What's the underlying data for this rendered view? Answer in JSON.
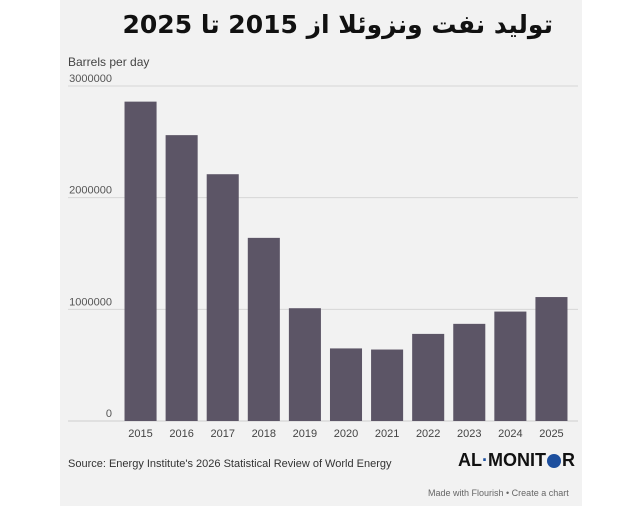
{
  "title": "تولید نفت ونزوئلا از 2015 تا 2025",
  "chart_data": {
    "type": "bar",
    "ylabel": "Barrels per day",
    "categories": [
      "2015",
      "2016",
      "2017",
      "2018",
      "2019",
      "2020",
      "2021",
      "2022",
      "2023",
      "2024",
      "2025"
    ],
    "values": [
      2860000,
      2560000,
      2210000,
      1640000,
      1010000,
      650000,
      640000,
      780000,
      870000,
      980000,
      1110000
    ],
    "ylim": [
      0,
      3000000
    ],
    "yticks": [
      "0",
      "1000000",
      "2000000",
      "3000000"
    ],
    "grid": true,
    "bar_color": "#5c5566"
  },
  "source": "Source: Energy Institute's 2026 Statistical Review of World Energy",
  "logo": {
    "part1": "AL",
    "part2": "MONIT",
    "part3": "R"
  },
  "footer": "Made with Flourish • Create a chart"
}
